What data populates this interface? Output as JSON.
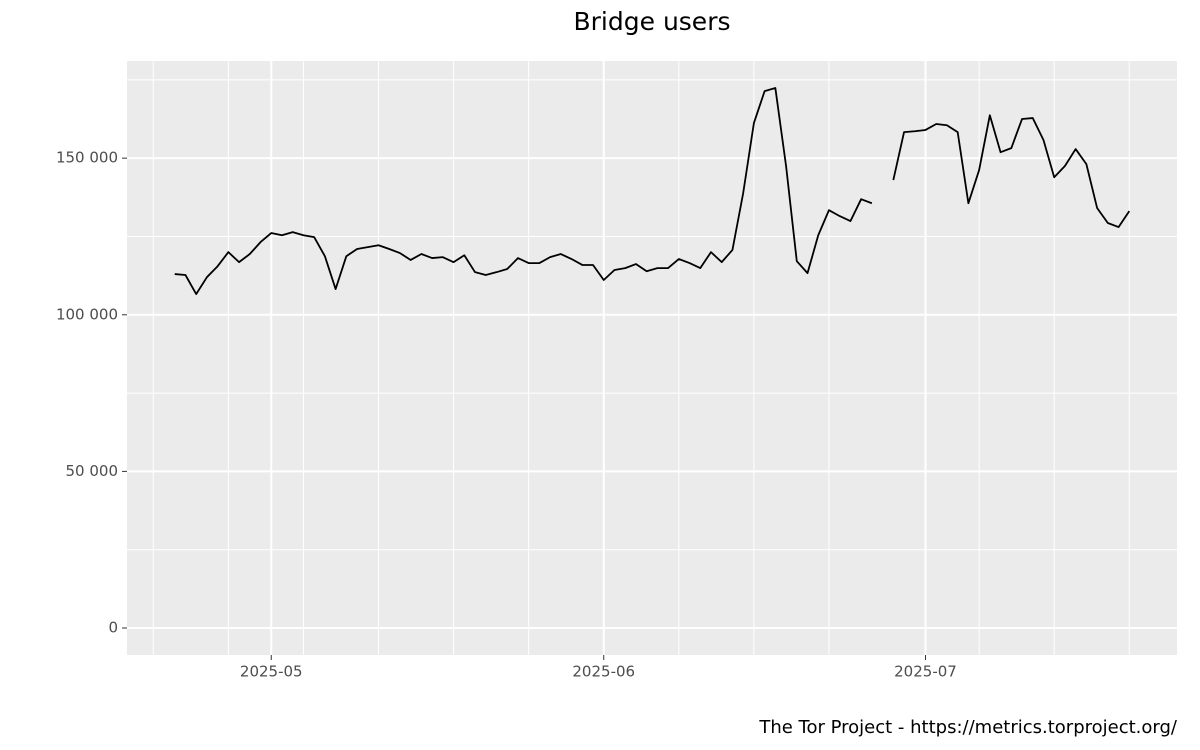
{
  "chart_data": {
    "type": "line",
    "title": "Bridge users",
    "caption": "The Tor Project - https://metrics.torproject.org/",
    "color": "#000000",
    "xlim": [
      -4.45,
      93.45
    ],
    "xticks": [
      {
        "value": 9,
        "label": "2025-05"
      },
      {
        "value": 40,
        "label": "2025-06"
      },
      {
        "value": 70,
        "label": "2025-07"
      }
    ],
    "x_minor_ticks": [
      -2,
      5,
      12,
      19,
      26,
      33,
      47,
      54,
      61,
      75,
      82,
      89
    ],
    "ylim": [
      -8620,
      181020
    ],
    "yticks": [
      0,
      {
        "value": 50000,
        "label": "50 000"
      },
      {
        "value": 100000,
        "label": "100 000"
      },
      {
        "value": 150000,
        "label": "150 000"
      }
    ],
    "y_minor_ticks": [
      25000,
      75000,
      125000,
      175000
    ],
    "grid": true,
    "values": [
      113000,
      112700,
      106600,
      112000,
      115500,
      120000,
      116800,
      119400,
      123200,
      126100,
      125400,
      126400,
      125400,
      124800,
      118700,
      108200,
      118700,
      121000,
      121600,
      122200,
      121000,
      119700,
      117500,
      119400,
      118100,
      118400,
      116800,
      119000,
      113600,
      112700,
      113600,
      114600,
      118100,
      116500,
      116500,
      118400,
      119400,
      117800,
      115900,
      115900,
      111100,
      114300,
      114900,
      116200,
      113900,
      114900,
      114900,
      117800,
      116500,
      114900,
      120000,
      116800,
      120700,
      138800,
      161200,
      171400,
      172400,
      147500,
      117100,
      113300,
      125400,
      133400,
      131500,
      129900,
      136900,
      135600,
      null,
      143000,
      158300,
      158600,
      159000,
      160900,
      160500,
      158300,
      135600,
      146200,
      163700,
      151900,
      153200,
      162500,
      162800,
      155800,
      143900,
      147500,
      152900,
      148100,
      134100,
      129300,
      128000,
      133100
    ]
  }
}
